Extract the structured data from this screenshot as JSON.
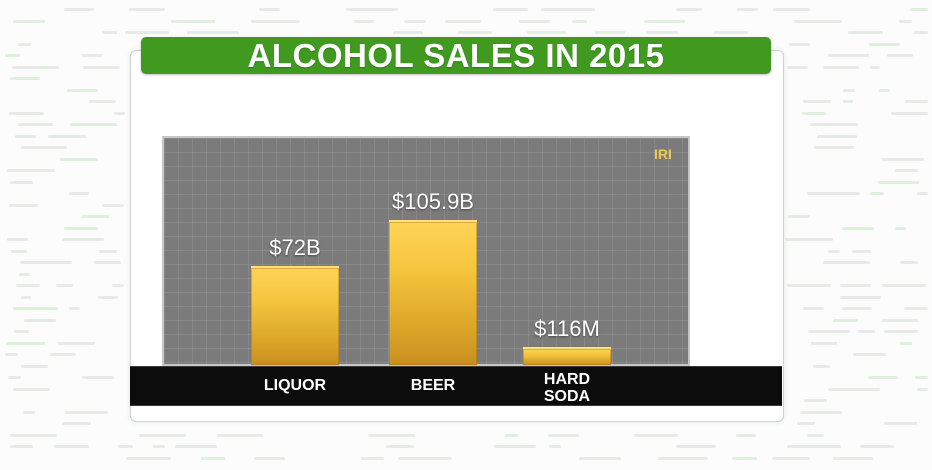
{
  "chart_data": {
    "type": "bar",
    "title": "ALCOHOL SALES IN 2015",
    "source": "IRI",
    "categories": [
      "LIQUOR",
      "BEER",
      "HARD\nSODA"
    ],
    "values": [
      72000000000,
      105900000000,
      116000000
    ],
    "units": "USD",
    "data_labels": [
      "$72B",
      "$105.9B",
      "$116M"
    ],
    "ylim": [
      0,
      140000000000
    ],
    "grid": true,
    "colors": {
      "title_bar": "#3f9a1f",
      "bar": "#f4c43c",
      "plot_bg": "#7b7b7c",
      "source_text": "#f2c84b"
    }
  }
}
